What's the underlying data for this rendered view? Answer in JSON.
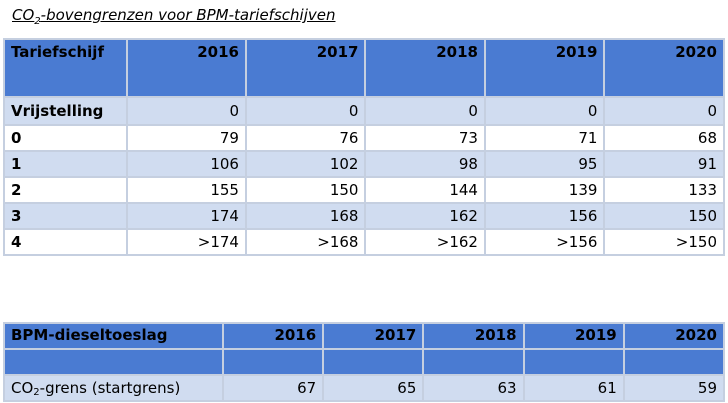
{
  "title": {
    "prefix": "CO",
    "subscript": "2",
    "suffix": "-bovengrenzen voor BPM-tariefschijven"
  },
  "table1": {
    "header": [
      "Tariefschijf",
      "2016",
      "2017",
      "2018",
      "2019",
      "2020"
    ],
    "rows": [
      {
        "label": "Vrijstelling",
        "values": [
          "0",
          "0",
          "0",
          "0",
          "0"
        ]
      },
      {
        "label": "0",
        "values": [
          "79",
          "76",
          "73",
          "71",
          "68"
        ]
      },
      {
        "label": "1",
        "values": [
          "106",
          "102",
          "98",
          "95",
          "91"
        ]
      },
      {
        "label": "2",
        "values": [
          "155",
          "150",
          "144",
          "139",
          "133"
        ]
      },
      {
        "label": "3",
        "values": [
          "174",
          "168",
          "162",
          "156",
          "150"
        ]
      },
      {
        "label": "4",
        "values": [
          ">174",
          ">168",
          ">162",
          ">156",
          ">150"
        ]
      }
    ]
  },
  "table2": {
    "header": [
      "BPM-dieseltoeslag",
      "2016",
      "2017",
      "2018",
      "2019",
      "2020"
    ],
    "row": {
      "label_prefix": "CO",
      "label_subscript": "2",
      "label_suffix": "-grens (startgrens)",
      "values": [
        "67",
        "65",
        "63",
        "61",
        "59"
      ]
    }
  },
  "colors": {
    "header_bg": "#4a7bd2",
    "band_bg": "#d0dcf0",
    "border": "#c5cfe0"
  }
}
